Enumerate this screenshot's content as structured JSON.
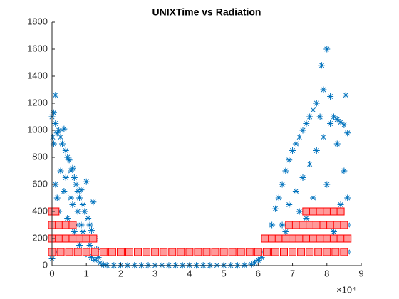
{
  "chart_data": {
    "type": "scatter",
    "title": "UNIXTime vs Radiation",
    "x_exponent": "×10⁴",
    "xlim": [
      0,
      9
    ],
    "xticks": [
      0,
      1,
      2,
      3,
      4,
      5,
      6,
      7,
      8,
      9
    ],
    "ylim": [
      0,
      1800
    ],
    "yticks": [
      0,
      200,
      400,
      600,
      800,
      1000,
      1200,
      1400,
      1600,
      1800
    ],
    "grid": false,
    "series": [
      {
        "color": "#0072bd",
        "marker": "asterisk",
        "x": [
          0.0,
          0.05,
          0.1,
          0.02,
          0.05,
          0.1,
          0.15,
          0.2,
          0.25,
          0.3,
          0.35,
          0.4,
          0.45,
          0.5,
          0.55,
          0.6,
          0.65,
          0.7,
          0.75,
          0.8,
          0.85,
          0.9,
          0.95,
          1.0,
          1.05,
          1.1,
          1.15,
          1.2,
          1.25,
          1.3,
          1.35,
          1.4,
          1.5,
          0.1,
          0.2,
          0.3,
          0.4,
          0.5,
          0.6,
          0.7,
          0.8,
          0.9,
          1.0,
          1.1,
          0.05,
          0.15,
          0.25,
          0.35,
          0.45,
          0.55,
          0.65,
          0.75,
          0.85,
          0.95,
          1.05,
          1.15,
          1.25,
          0.0,
          0.1,
          1.6,
          1.8,
          2.0,
          2.2,
          2.4,
          2.6,
          2.8,
          3.0,
          3.2,
          3.4,
          3.6,
          3.8,
          4.0,
          4.2,
          4.4,
          4.6,
          4.8,
          5.0,
          5.2,
          5.4,
          5.6,
          5.8,
          5.9,
          6.0,
          6.1,
          6.2,
          6.3,
          6.4,
          6.5,
          6.6,
          6.7,
          6.8,
          6.9,
          7.0,
          7.1,
          7.2,
          7.3,
          7.4,
          7.5,
          7.6,
          7.7,
          7.8,
          7.9,
          8.0,
          7.85,
          8.1,
          8.2,
          8.3,
          8.4,
          8.5,
          8.6,
          8.55,
          6.3,
          6.5,
          6.7,
          6.9,
          7.1,
          7.3,
          7.5,
          7.7,
          7.9,
          8.1,
          8.3,
          8.5,
          8.6,
          7.2,
          7.6,
          8.0,
          8.4,
          8.6,
          6.8,
          7.4,
          7.8,
          8.2,
          8.5,
          8.6
        ],
        "values": [
          1100,
          1130,
          1260,
          950,
          900,
          1050,
          980,
          1000,
          950,
          900,
          1010,
          850,
          800,
          780,
          700,
          720,
          650,
          600,
          550,
          500,
          560,
          450,
          400,
          620,
          350,
          300,
          260,
          470,
          200,
          120,
          60,
          20,
          5,
          600,
          400,
          300,
          650,
          200,
          450,
          300,
          150,
          250,
          100,
          150,
          300,
          500,
          700,
          550,
          350,
          500,
          250,
          400,
          300,
          200,
          80,
          60,
          40,
          50,
          100,
          2,
          1,
          2,
          1,
          2,
          1,
          2,
          1,
          2,
          1,
          2,
          1,
          2,
          1,
          2,
          1,
          2,
          1,
          2,
          1,
          3,
          10,
          20,
          40,
          60,
          100,
          200,
          300,
          420,
          500,
          600,
          700,
          780,
          850,
          900,
          950,
          1000,
          1050,
          1100,
          1150,
          1200,
          1100,
          1300,
          1600,
          1480,
          1250,
          1100,
          1080,
          1060,
          1040,
          980,
          1260,
          100,
          200,
          300,
          450,
          550,
          650,
          750,
          850,
          950,
          1050,
          900,
          700,
          500,
          400,
          500,
          600,
          450,
          300,
          250,
          350,
          300,
          250,
          200,
          100
        ]
      },
      {
        "color": "#ff0000",
        "marker": "square",
        "x": [
          0,
          0.25,
          0.5,
          0.75,
          1,
          1.25,
          1.5,
          1.75,
          2,
          2.25,
          2.5,
          2.75,
          3,
          3.25,
          3.5,
          3.75,
          4,
          4.25,
          4.5,
          4.75,
          5,
          5.25,
          5.5,
          5.75,
          6,
          6.25,
          6.5,
          6.75,
          7,
          7.25,
          7.5,
          7.75,
          8,
          8.25,
          8.5,
          0,
          0.2,
          0.4,
          0.6,
          0.8,
          1.0,
          1.2,
          6.2,
          6.4,
          6.6,
          6.8,
          7.0,
          7.2,
          7.4,
          7.6,
          7.8,
          8.0,
          8.2,
          8.4,
          8.6,
          0,
          0.2,
          0.4,
          0.6,
          6.9,
          7.1,
          7.3,
          7.5,
          7.7,
          7.9,
          8.1,
          8.3,
          8.5,
          0,
          0.1,
          7.4,
          7.6,
          7.8,
          8.0,
          8.2,
          8.4
        ],
        "values": [
          100,
          100,
          100,
          100,
          100,
          100,
          100,
          100,
          100,
          100,
          100,
          100,
          100,
          100,
          100,
          100,
          100,
          100,
          100,
          100,
          100,
          100,
          100,
          100,
          100,
          100,
          100,
          100,
          100,
          100,
          100,
          100,
          100,
          100,
          100,
          200,
          200,
          200,
          200,
          200,
          200,
          200,
          200,
          200,
          200,
          200,
          200,
          200,
          200,
          200,
          200,
          200,
          200,
          200,
          200,
          300,
          300,
          300,
          300,
          300,
          300,
          300,
          300,
          300,
          300,
          300,
          300,
          300,
          400,
          400,
          400,
          400,
          400,
          400,
          400,
          400
        ]
      }
    ]
  }
}
